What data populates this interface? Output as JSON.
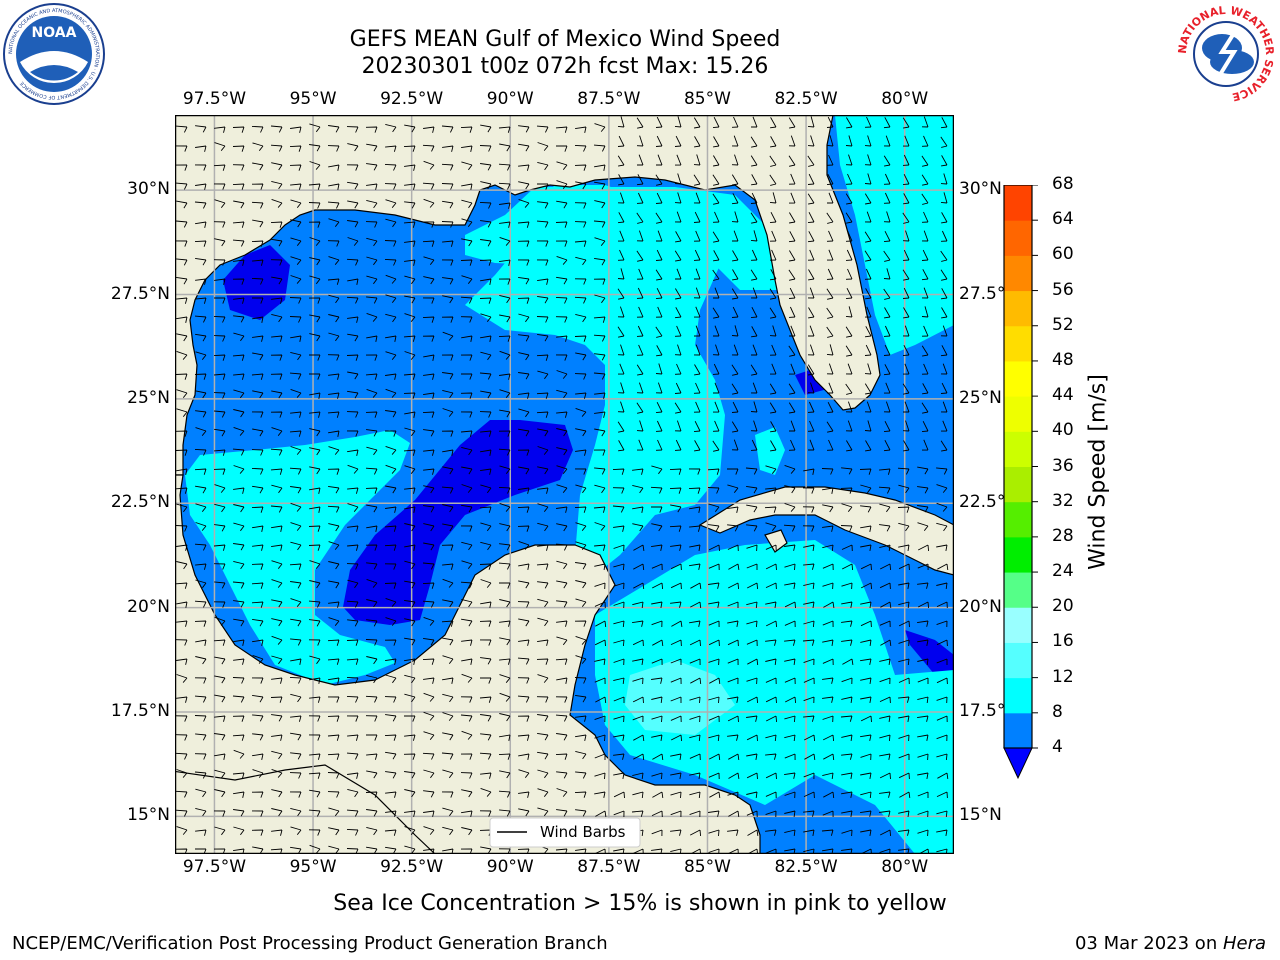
{
  "title": {
    "line1": "GEFS MEAN Gulf of Mexico Wind Speed",
    "line2": "20230301 t00z 072h fcst   Max: 15.26"
  },
  "map": {
    "lon_range": [
      -98.5,
      -78.75
    ],
    "lat_range": [
      14.1,
      31.8
    ],
    "lon_ticks": [
      "97.5°W",
      "95°W",
      "92.5°W",
      "90°W",
      "87.5°W",
      "85°W",
      "82.5°W",
      "80°W"
    ],
    "lon_tick_values": [
      -97.5,
      -95,
      -92.5,
      -90,
      -87.5,
      -85,
      -82.5,
      -80
    ],
    "lat_ticks": [
      "30°N",
      "27.5°N",
      "25°N",
      "22.5°N",
      "20°N",
      "17.5°N",
      "15°N"
    ],
    "lat_tick_values": [
      30,
      27.5,
      25,
      22.5,
      20,
      17.5,
      15
    ],
    "grid": true,
    "legend_label": "Wind Barbs",
    "legend_position": "bottom-center"
  },
  "colorbar": {
    "title": "Wind Speed [m/s]",
    "levels": [
      4,
      8,
      12,
      16,
      20,
      24,
      28,
      32,
      36,
      40,
      44,
      48,
      52,
      56,
      60,
      64,
      68
    ],
    "level_labels": [
      "4",
      "8",
      "12",
      "16",
      "20",
      "24",
      "28",
      "32",
      "36",
      "40",
      "44",
      "48",
      "52",
      "56",
      "60",
      "64",
      "68"
    ],
    "colors": [
      "#0080ff",
      "#00ffff",
      "#55ffff",
      "#99ffff",
      "#55ff88",
      "#00ee00",
      "#55ee00",
      "#aaee00",
      "#ccff00",
      "#eeff00",
      "#ffff00",
      "#ffdd00",
      "#ffbb00",
      "#ff8800",
      "#ff6600",
      "#ff4400",
      "#ff0000"
    ],
    "under_color": "#0000ff"
  },
  "colors": {
    "land": "#efefdc",
    "level_4_8": "#0080ff",
    "level_8_12": "#00ffff",
    "level_12_16": "#55ffff",
    "level_below_4": "#0000ee",
    "grid": "#b0b0b0"
  },
  "logos": {
    "left": "NOAA",
    "left_ring": "NATIONAL OCEANIC AND ATMOSPHERIC ADMINISTRATION · U.S. DEPARTMENT OF COMMERCE",
    "right_ring": "NATIONAL WEATHER SERVICE"
  },
  "caption": "Sea Ice Concentration > 15% is shown in pink to yellow",
  "footer": {
    "left": "NCEP/EMC/Verification Post Processing Product Generation Branch",
    "right_date": "03 Mar 2023 on ",
    "right_host": "Hera"
  }
}
